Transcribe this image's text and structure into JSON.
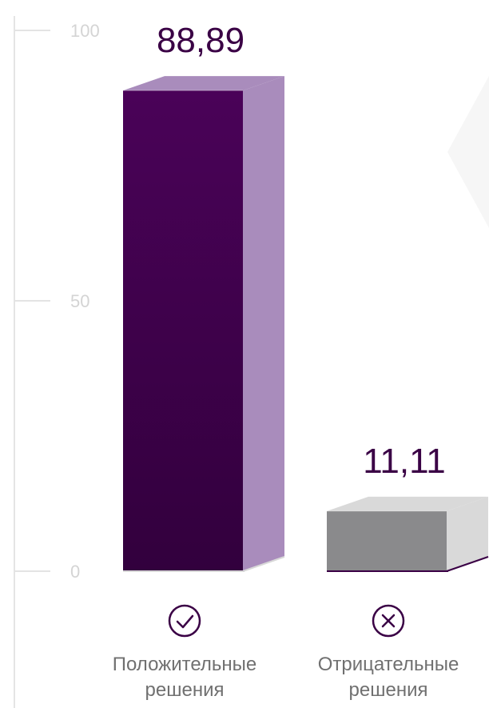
{
  "chart_data": {
    "type": "bar",
    "categories": [
      "Положительные решения",
      "Отрицательные решения"
    ],
    "category_lines": [
      [
        "Положительные",
        "решения"
      ],
      [
        "Отрицательные",
        "решения"
      ]
    ],
    "values": [
      88.89,
      11.11
    ],
    "value_labels": [
      "88,89",
      "11,11"
    ],
    "category_icons": [
      "check-circle-icon",
      "x-circle-icon"
    ],
    "yticks": [
      {
        "value": 0,
        "label": "0"
      },
      {
        "value": 50,
        "label": "50"
      },
      {
        "value": 100,
        "label": "100"
      }
    ],
    "ylim": [
      0,
      100
    ],
    "title": "",
    "xlabel": "",
    "ylabel": "",
    "grid": false,
    "colors": {
      "bars_front": [
        "#3a0045",
        "#8a8a8c"
      ],
      "bars_side": [
        "#a98cbc",
        "#d9d9d9"
      ],
      "bars_top": [
        "#a98cbc",
        "#d9d9d9"
      ],
      "baseline": [
        "#d8d8d8",
        "#3a0045"
      ],
      "value_label": "#3a0045",
      "axis": "#e4e4e4",
      "tick_label": "#d4d4d4",
      "icon": "#3a0045",
      "category_label": "#707070"
    }
  }
}
